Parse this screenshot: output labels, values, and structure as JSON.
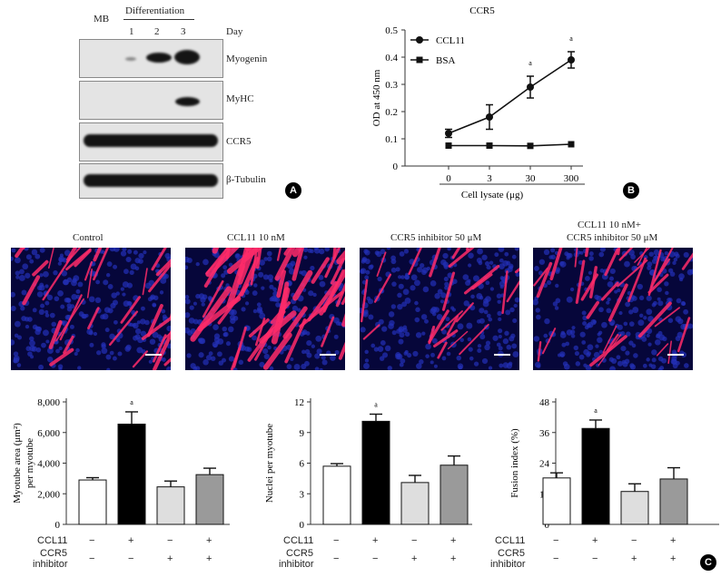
{
  "panel_a": {
    "badge": "A",
    "header": {
      "mb": "MB",
      "differentiation": "Differentiation",
      "day": "Day",
      "days": [
        "1",
        "2",
        "3"
      ]
    },
    "blots": [
      "Myogenin",
      "MyHC",
      "CCR5",
      "β-Tubulin"
    ]
  },
  "panel_b": {
    "badge": "B"
  },
  "panel_c": {
    "badge": "C",
    "image_labels": [
      "Control",
      "CCL11 10 nM",
      "CCR5 inhibitor 50 μM",
      "CCL11 10 nM+",
      "CCR5 inhibitor 50 μM"
    ],
    "row_labels": {
      "ccl11": "CCL11",
      "ccr5_1": "CCR5",
      "ccr5_2": "inhibitor"
    },
    "ccl11_signs": [
      "−",
      "+",
      "−",
      "+"
    ],
    "ccr5_signs": [
      "−",
      "−",
      "+",
      "+"
    ]
  },
  "chart_data": [
    {
      "type": "line",
      "title": "CCR5",
      "xlabel": "Cell lysate (μg)",
      "ylabel": "OD at 450 nm",
      "x": [
        "0",
        "3",
        "30",
        "300"
      ],
      "ylim": [
        0,
        0.5
      ],
      "yticks": [
        "0",
        "0.1",
        "0.2",
        "0.3",
        "0.4",
        "0.5"
      ],
      "series": [
        {
          "name": "CCL11",
          "marker": "circle",
          "values": [
            0.12,
            0.18,
            0.29,
            0.39
          ],
          "errors": [
            0.015,
            0.045,
            0.04,
            0.03
          ]
        },
        {
          "name": "BSA",
          "marker": "square",
          "values": [
            0.075,
            0.075,
            0.074,
            0.08
          ],
          "errors": [
            0,
            0,
            0,
            0
          ]
        }
      ],
      "annotations": [
        {
          "x": "30",
          "text": "a"
        },
        {
          "x": "300",
          "text": "a"
        }
      ],
      "legend": "top-left"
    },
    {
      "type": "bar",
      "ylabel_1": "Myotube area (μm²)",
      "ylabel_2": "per myotube",
      "yticks": [
        "0",
        "2,000",
        "4,000",
        "6,000",
        "8,000"
      ],
      "ylim": [
        0,
        8000
      ],
      "values": [
        2900,
        6550,
        2450,
        3250
      ],
      "errors": [
        150,
        800,
        380,
        420
      ],
      "colors": [
        "#ffffff",
        "#000000",
        "#dedede",
        "#9a9a9a"
      ],
      "annotation": "a"
    },
    {
      "type": "bar",
      "ylabel_1": "Nuclei per myotube",
      "ylabel_2": "",
      "yticks": [
        "0",
        "3",
        "6",
        "9",
        "12"
      ],
      "ylim": [
        0,
        12
      ],
      "values": [
        5.7,
        10.1,
        4.1,
        5.8
      ],
      "errors": [
        0.25,
        0.7,
        0.7,
        0.9
      ],
      "colors": [
        "#ffffff",
        "#000000",
        "#dedede",
        "#9a9a9a"
      ],
      "annotation": "a"
    },
    {
      "type": "bar",
      "ylabel_1": "Fusion index (%)",
      "ylabel_2": "",
      "yticks": [
        "0",
        "12",
        "24",
        "36",
        "48"
      ],
      "ylim": [
        0,
        48
      ],
      "values": [
        18.2,
        37.6,
        12.9,
        17.8
      ],
      "errors": [
        2,
        3.3,
        3,
        4.4
      ],
      "colors": [
        "#ffffff",
        "#000000",
        "#dedede",
        "#9a9a9a"
      ],
      "annotation": "a"
    }
  ]
}
